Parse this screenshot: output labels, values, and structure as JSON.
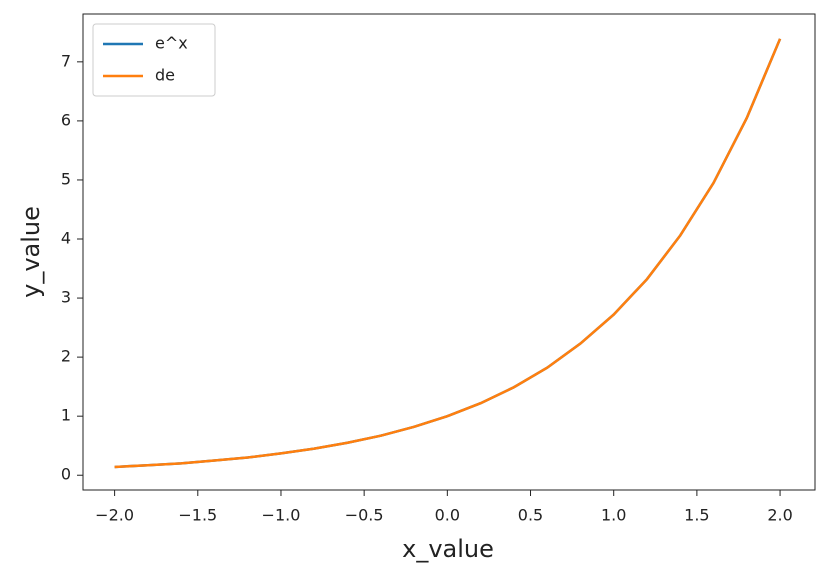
{
  "chart_data": {
    "type": "line",
    "x_label": "x_value",
    "y_label": "y_value",
    "x": [
      -2.0,
      -1.8,
      -1.6,
      -1.4,
      -1.2,
      -1.0,
      -0.8,
      -0.6,
      -0.4,
      -0.2,
      0.0,
      0.2,
      0.4,
      0.6,
      0.8,
      1.0,
      1.2,
      1.4,
      1.6,
      1.8,
      2.0
    ],
    "series": [
      {
        "name": "e^x",
        "color": "#1f77b4",
        "values": [
          0.14,
          0.17,
          0.2,
          0.25,
          0.3,
          0.37,
          0.45,
          0.55,
          0.67,
          0.82,
          1.0,
          1.22,
          1.49,
          1.82,
          2.23,
          2.72,
          3.32,
          4.06,
          4.95,
          6.05,
          7.39
        ]
      },
      {
        "name": "de",
        "color": "#ff7f0e",
        "values": [
          0.14,
          0.17,
          0.2,
          0.25,
          0.3,
          0.37,
          0.45,
          0.55,
          0.67,
          0.82,
          1.0,
          1.22,
          1.49,
          1.82,
          2.23,
          2.72,
          3.32,
          4.06,
          4.95,
          6.05,
          7.39
        ]
      }
    ],
    "xlim": [
      -2.19,
      2.21
    ],
    "xticks": [
      {
        "value": -2.0,
        "label": "−2.0"
      },
      {
        "value": -1.5,
        "label": "−1.5"
      },
      {
        "value": -1.0,
        "label": "−1.0"
      },
      {
        "value": -0.5,
        "label": "−0.5"
      },
      {
        "value": 0.0,
        "label": "0.0"
      },
      0.5,
      {
        "value": 1.0,
        "label": "1.0"
      },
      1.5,
      {
        "value": 2.0,
        "label": "2.0"
      }
    ],
    "ylim": [
      -0.25,
      7.81
    ],
    "yticks": [
      0,
      1,
      2,
      3,
      4,
      5,
      6,
      7
    ],
    "grid": false,
    "legend": "upper-left"
  }
}
